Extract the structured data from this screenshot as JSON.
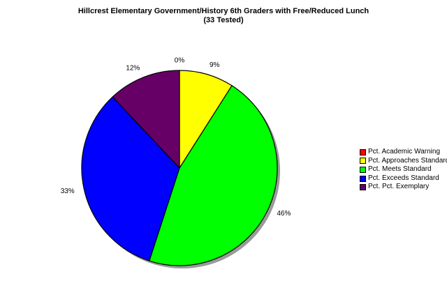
{
  "chart_data": {
    "type": "pie",
    "title": "Hillcrest Elementary Government/History 6th Graders with Free/Reduced Lunch",
    "subtitle": "(33 Tested)",
    "legend_position": "right",
    "slices": [
      {
        "label": "Pct. Academic Warning",
        "value": 0,
        "display": "0%",
        "color": "#ff0000"
      },
      {
        "label": "Pct. Approaches Standard",
        "value": 9,
        "display": "9%",
        "color": "#ffff00"
      },
      {
        "label": "Pct. Meets Standard",
        "value": 46,
        "display": "46%",
        "color": "#00ff00"
      },
      {
        "label": "Pct. Exceeds Standard",
        "value": 33,
        "display": "33%",
        "color": "#0000ff"
      },
      {
        "label": "Pct. Pct. Exemplary",
        "value": 12,
        "display": "12%",
        "color": "#660066"
      }
    ]
  }
}
